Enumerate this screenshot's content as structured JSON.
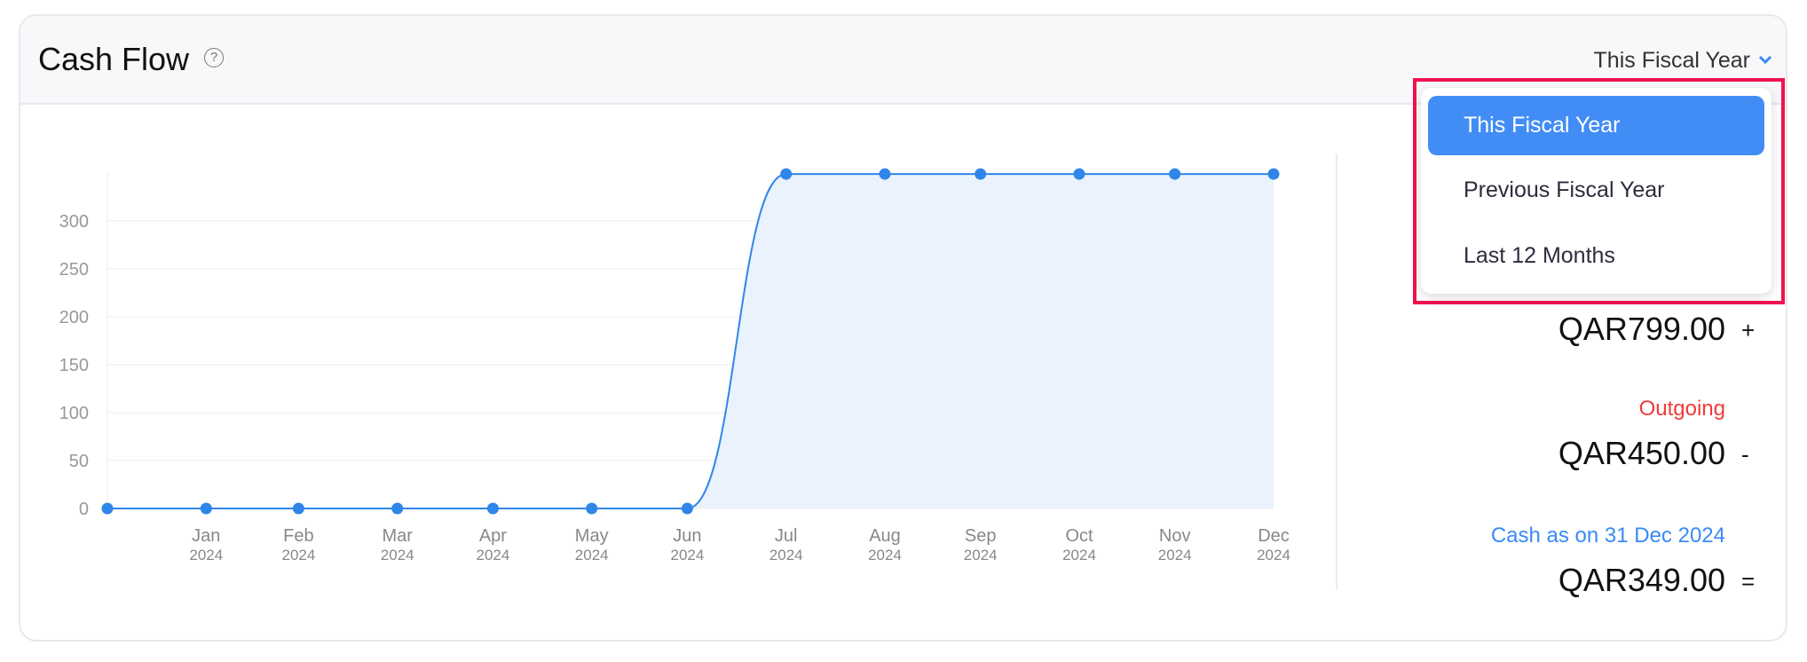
{
  "header": {
    "title": "Cash Flow",
    "help_icon": "question-circle-icon",
    "period_selected": "This Fiscal Year",
    "period_icon": "chevron-down-icon"
  },
  "dropdown": {
    "options": [
      {
        "label": "This Fiscal Year",
        "selected": true
      },
      {
        "label": "Previous Fiscal Year",
        "selected": false
      },
      {
        "label": "Last 12 Months",
        "selected": false
      }
    ]
  },
  "summary": {
    "incoming_amount": "QAR799.00",
    "incoming_sign": "+",
    "outgoing_label": "Outgoing",
    "outgoing_amount": "QAR450.00",
    "outgoing_sign": "-",
    "cash_label": "Cash as on 31 Dec 2024",
    "cash_amount": "QAR349.00",
    "cash_sign": "=",
    "colors": {
      "outgoing": "#f03a3a",
      "cash": "#3a8af5"
    }
  },
  "chart_data": {
    "type": "area",
    "x": [
      "2023-12-31",
      "2024-01-31",
      "2024-02-29",
      "2024-03-31",
      "2024-04-30",
      "2024-05-31",
      "2024-06-30",
      "2024-07-31",
      "2024-08-31",
      "2024-09-30",
      "2024-10-31",
      "2024-11-30",
      "2024-12-31"
    ],
    "x_tick_labels": [
      {
        "month": "",
        "year": ""
      },
      {
        "month": "Jan",
        "year": "2024"
      },
      {
        "month": "Feb",
        "year": "2024"
      },
      {
        "month": "Mar",
        "year": "2024"
      },
      {
        "month": "Apr",
        "year": "2024"
      },
      {
        "month": "May",
        "year": "2024"
      },
      {
        "month": "Jun",
        "year": "2024"
      },
      {
        "month": "Jul",
        "year": "2024"
      },
      {
        "month": "Aug",
        "year": "2024"
      },
      {
        "month": "Sep",
        "year": "2024"
      },
      {
        "month": "Oct",
        "year": "2024"
      },
      {
        "month": "Nov",
        "year": "2024"
      },
      {
        "month": "Dec",
        "year": "2024"
      }
    ],
    "values": [
      0,
      0,
      0,
      0,
      0,
      0,
      0,
      349,
      349,
      349,
      349,
      349,
      349
    ],
    "y_ticks": [
      "0",
      "50",
      "100",
      "150",
      "200",
      "250",
      "300"
    ],
    "ylim": [
      0,
      350
    ],
    "grid": true,
    "colors": {
      "line": "#2f86e8",
      "fill": "#eaf2fd"
    }
  }
}
